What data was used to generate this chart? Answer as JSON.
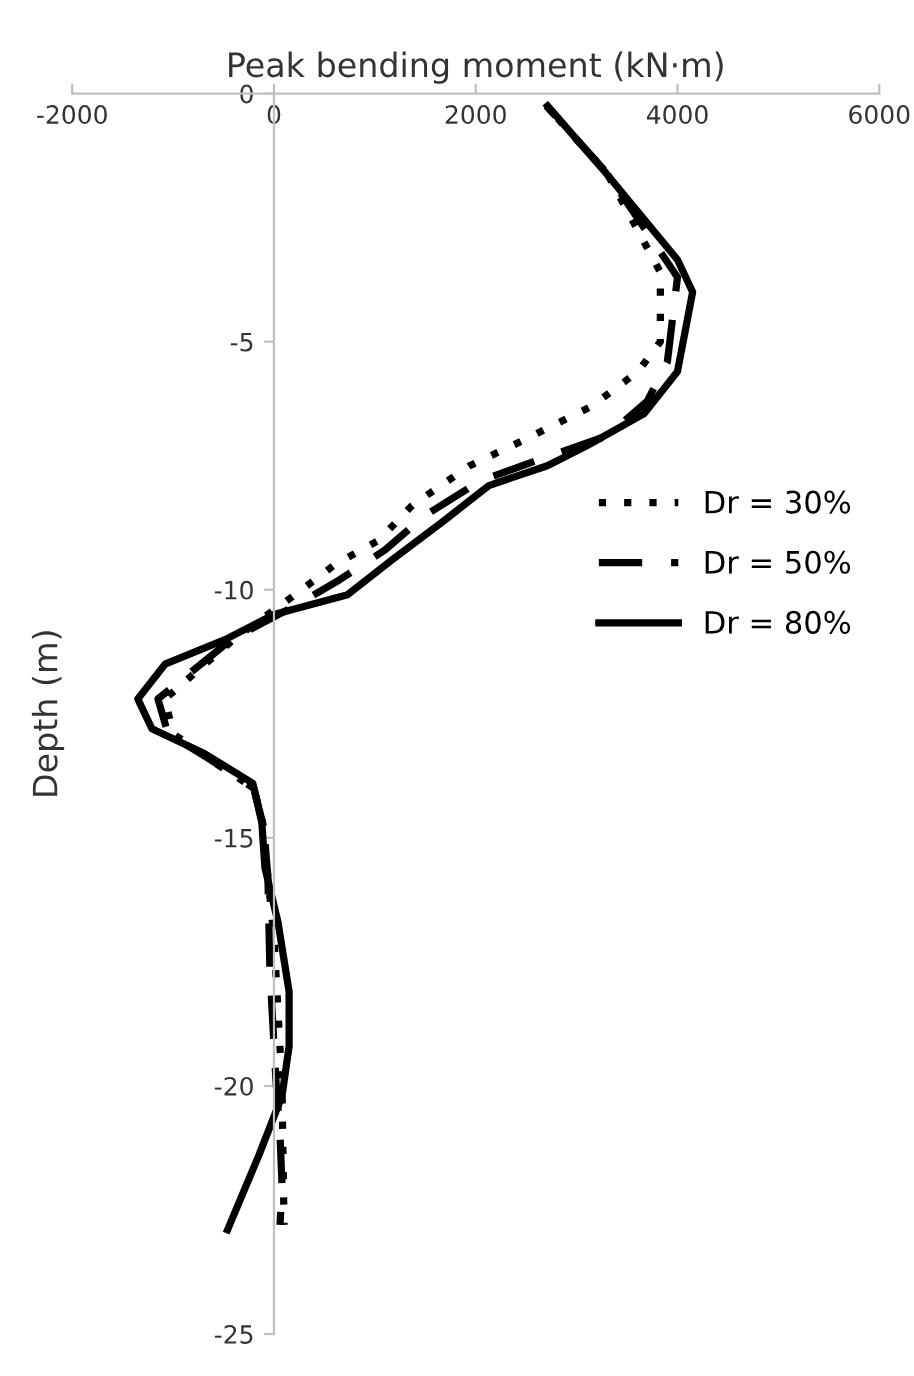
{
  "chart_data": {
    "type": "line",
    "xlabel": "Peak bending moment (kN·m)",
    "ylabel": "Depth (m)",
    "xlim": [
      -2000,
      6000
    ],
    "xticks": [
      -2000,
      0,
      2000,
      4000,
      6000
    ],
    "ylim": [
      -25,
      0
    ],
    "yticks": [
      -25,
      -20,
      -15,
      -10,
      -5,
      0
    ],
    "grid": false,
    "legend": "right",
    "marker": "none",
    "series": [
      {
        "name": "Dr = 30%",
        "color": "#000000",
        "line_style": "dotted",
        "x": [
          2700,
          3300,
          3830,
          3830,
          3610,
          3150,
          2460,
          1940,
          1370,
          1040,
          600,
          210,
          -400,
          -1080,
          -1000,
          -650,
          -200,
          -100,
          -60,
          0,
          40,
          80,
          90,
          100
        ],
        "values": [
          -0.25,
          -1.6,
          -3.6,
          -5.0,
          -5.6,
          -6.3,
          -7.0,
          -7.5,
          -8.3,
          -9.0,
          -9.5,
          -10.1,
          -11.0,
          -12.2,
          -12.9,
          -13.4,
          -14.0,
          -14.8,
          -15.8,
          -17.0,
          -18.5,
          -20.0,
          -21.5,
          -22.8
        ]
      },
      {
        "name": "Dr = 50%",
        "color": "#000000",
        "line_style": "dashed",
        "x": [
          2700,
          3300,
          4000,
          3900,
          3700,
          3300,
          2600,
          2050,
          1500,
          1100,
          650,
          230,
          -420,
          -1150,
          -1050,
          -650,
          -200,
          -100,
          -60,
          -40,
          20,
          60,
          80,
          60
        ],
        "values": [
          -0.25,
          -1.6,
          -3.7,
          -5.4,
          -6.2,
          -6.9,
          -7.4,
          -7.8,
          -8.5,
          -9.2,
          -9.8,
          -10.3,
          -11.0,
          -12.2,
          -12.9,
          -13.4,
          -14.0,
          -14.8,
          -15.8,
          -17.7,
          -19.9,
          -21.0,
          -22.0,
          -22.8
        ]
      },
      {
        "name": "Dr = 80%",
        "color": "#000000",
        "line_style": "solid",
        "x": [
          2712,
          3290,
          4000,
          4150,
          4000,
          3670,
          3100,
          2710,
          2130,
          1690,
          1170,
          730,
          0,
          -480,
          -1080,
          -1350,
          -1210,
          -690,
          -210,
          -120,
          -90,
          40,
          150,
          150,
          80,
          -150,
          -460
        ],
        "values": [
          -0.25,
          -1.6,
          -3.35,
          -4.0,
          -5.6,
          -6.45,
          -7.1,
          -7.5,
          -7.9,
          -8.6,
          -9.4,
          -10.1,
          -10.5,
          -11.0,
          -11.5,
          -12.2,
          -12.8,
          -13.3,
          -13.9,
          -14.7,
          -15.6,
          -16.7,
          -18.1,
          -19.2,
          -20.2,
          -21.4,
          -22.9
        ]
      }
    ]
  }
}
